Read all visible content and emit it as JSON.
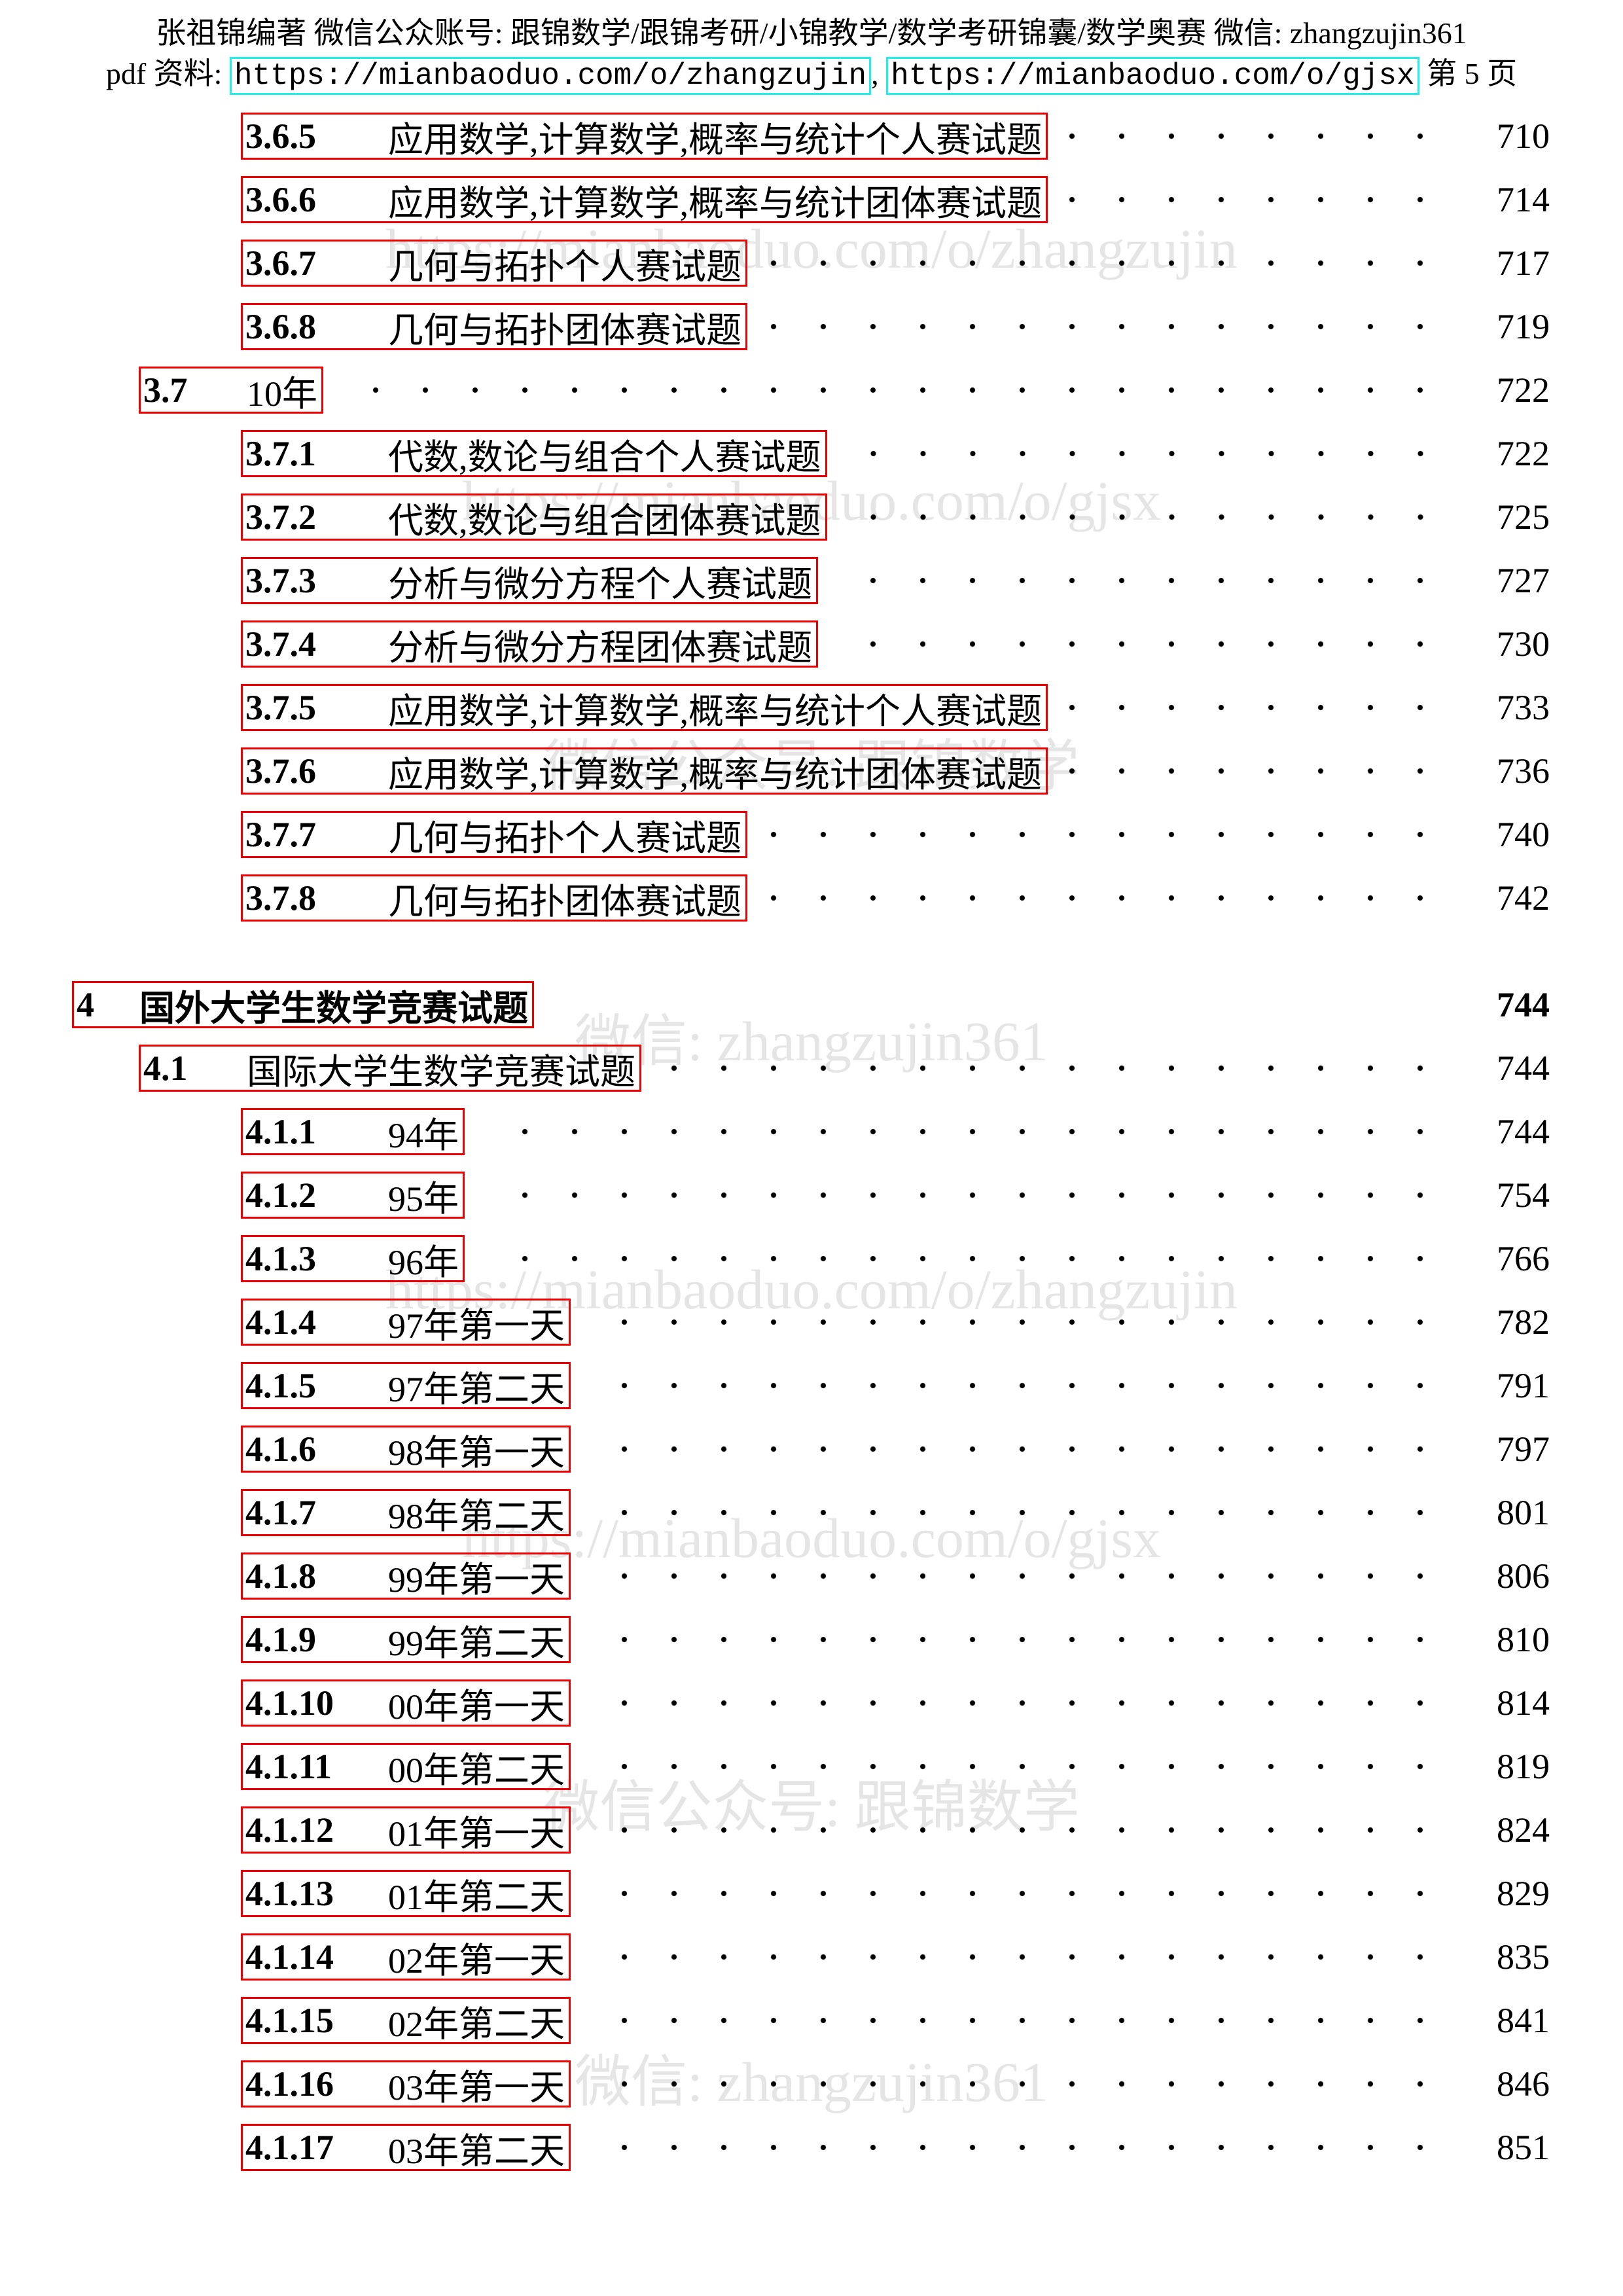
{
  "header": {
    "line1": "张祖锦编著 微信公众账号: 跟锦数学/跟锦考研/小锦教学/数学考研锦囊/数学奥赛 微信: zhangzujin361",
    "pdf_label": "pdf 资料:",
    "link1": "https://mianbaoduo.com/o/zhangzujin",
    "separator": ",",
    "link2": "https://mianbaoduo.com/o/gjsx",
    "page_label": "第 5 页"
  },
  "watermarks": [
    "微信: zhangzujin361",
    "https://mianbaoduo.com/o/zhangzujin",
    "https://mianbaoduo.com/o/gjsx",
    "微信公众号: 跟锦数学"
  ],
  "toc": [
    {
      "number": "3.6.5",
      "title": "应用数学,计算数学,概率与统计个人赛试题",
      "page": 710
    },
    {
      "number": "3.6.6",
      "title": "应用数学,计算数学,概率与统计团体赛试题",
      "page": 714
    },
    {
      "number": "3.6.7",
      "title": "几何与拓扑个人赛试题",
      "page": 717
    },
    {
      "number": "3.6.8",
      "title": "几何与拓扑团体赛试题",
      "page": 719
    },
    {
      "number": "3.7",
      "title": "10年",
      "page": 722
    },
    {
      "number": "3.7.1",
      "title": "代数,数论与组合个人赛试题",
      "page": 722
    },
    {
      "number": "3.7.2",
      "title": "代数,数论与组合团体赛试题",
      "page": 725
    },
    {
      "number": "3.7.3",
      "title": "分析与微分方程个人赛试题",
      "page": 727
    },
    {
      "number": "3.7.4",
      "title": "分析与微分方程团体赛试题",
      "page": 730
    },
    {
      "number": "3.7.5",
      "title": "应用数学,计算数学,概率与统计个人赛试题",
      "page": 733
    },
    {
      "number": "3.7.6",
      "title": "应用数学,计算数学,概率与统计团体赛试题",
      "page": 736
    },
    {
      "number": "3.7.7",
      "title": "几何与拓扑个人赛试题",
      "page": 740
    },
    {
      "number": "3.7.8",
      "title": "几何与拓扑团体赛试题",
      "page": 742
    },
    {
      "number": "4",
      "title": "国外大学生数学竞赛试题",
      "page": 744
    },
    {
      "number": "4.1",
      "title": "国际大学生数学竞赛试题",
      "page": 744
    },
    {
      "number": "4.1.1",
      "title": "94年",
      "page": 744
    },
    {
      "number": "4.1.2",
      "title": "95年",
      "page": 754
    },
    {
      "number": "4.1.3",
      "title": "96年",
      "page": 766
    },
    {
      "number": "4.1.4",
      "title": "97年第一天",
      "page": 782
    },
    {
      "number": "4.1.5",
      "title": "97年第二天",
      "page": 791
    },
    {
      "number": "4.1.6",
      "title": "98年第一天",
      "page": 797
    },
    {
      "number": "4.1.7",
      "title": "98年第二天",
      "page": 801
    },
    {
      "number": "4.1.8",
      "title": "99年第一天",
      "page": 806
    },
    {
      "number": "4.1.9",
      "title": "99年第二天",
      "page": 810
    },
    {
      "number": "4.1.10",
      "title": "00年第一天",
      "page": 814
    },
    {
      "number": "4.1.11",
      "title": "00年第二天",
      "page": 819
    },
    {
      "number": "4.1.12",
      "title": "01年第一天",
      "page": 824
    },
    {
      "number": "4.1.13",
      "title": "01年第二天",
      "page": 829
    },
    {
      "number": "4.1.14",
      "title": "02年第一天",
      "page": 835
    },
    {
      "number": "4.1.15",
      "title": "02年第二天",
      "page": 841
    },
    {
      "number": "4.1.16",
      "title": "03年第一天",
      "page": 846
    },
    {
      "number": "4.1.17",
      "title": "03年第二天",
      "page": 851
    }
  ]
}
